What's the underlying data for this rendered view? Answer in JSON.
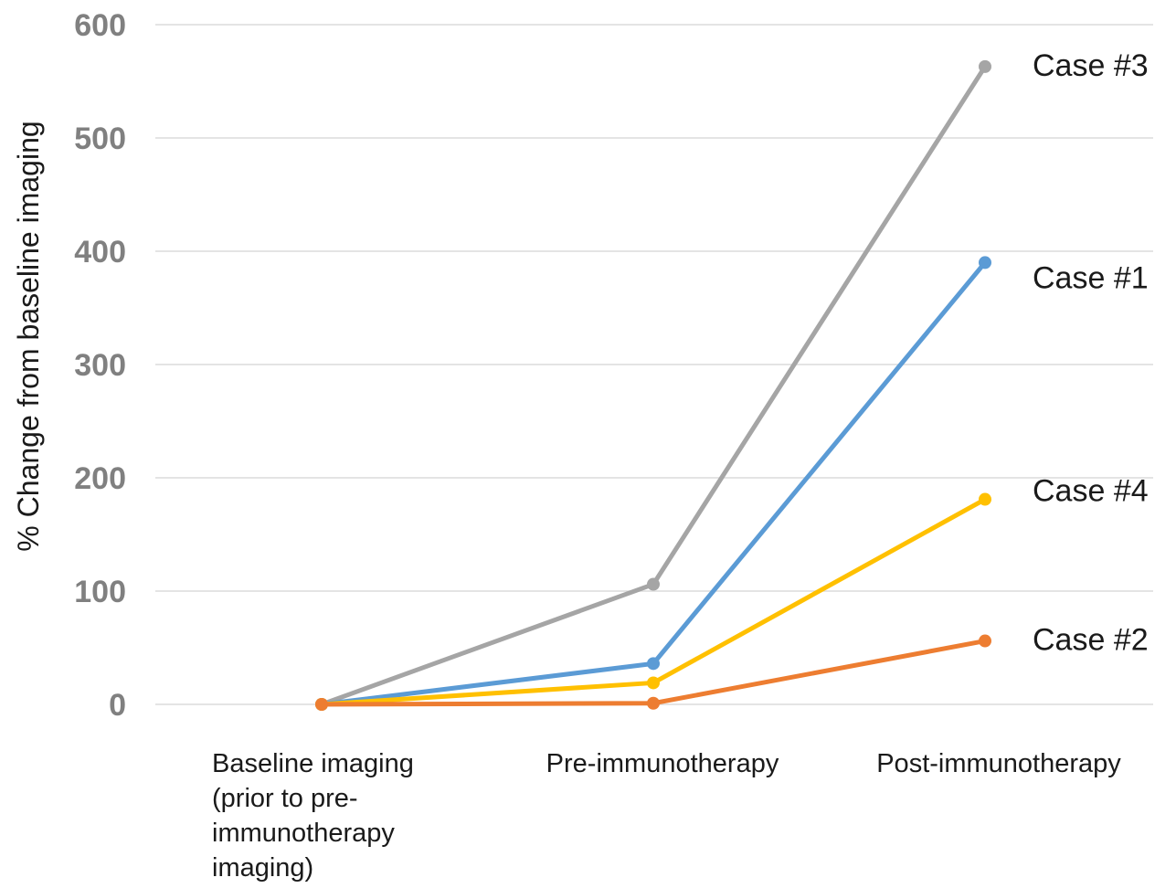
{
  "chart_data": {
    "type": "line",
    "title": "",
    "xlabel": "",
    "ylabel": "% Change from baseline imaging",
    "ylim": [
      0,
      600
    ],
    "yticks": [
      0,
      100,
      200,
      300,
      400,
      500,
      600
    ],
    "grid": true,
    "categories": [
      [
        "Baseline imaging",
        "(prior to pre-",
        "immunotherapy",
        "imaging)"
      ],
      [
        "Pre-immunotherapy"
      ],
      [
        "Post-immunotherapy"
      ]
    ],
    "series": [
      {
        "name": "Case #3",
        "color": "#A5A5A5",
        "values": [
          0,
          106,
          563
        ]
      },
      {
        "name": "Case #1",
        "color": "#5B9BD5",
        "values": [
          0,
          36,
          390
        ]
      },
      {
        "name": "Case #4",
        "color": "#FFC000",
        "values": [
          0,
          19,
          181
        ]
      },
      {
        "name": "Case #2",
        "color": "#ED7D31",
        "values": [
          0,
          1,
          56
        ]
      }
    ]
  }
}
